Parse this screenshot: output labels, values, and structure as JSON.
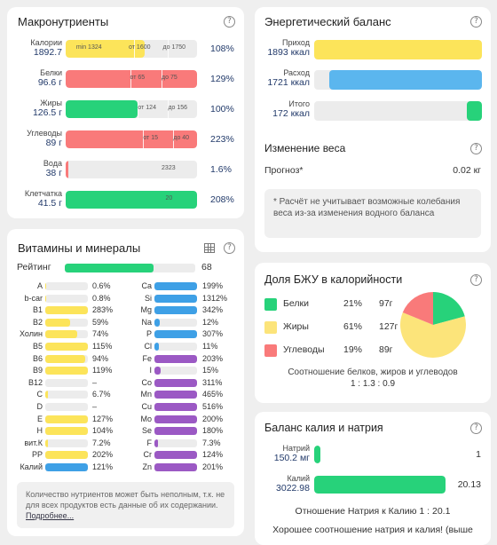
{
  "macro": {
    "title": "Макронутриенты",
    "rows": [
      {
        "name": "Калории",
        "value": "1892.7",
        "pct": "108%",
        "color": "#fce45a",
        "fill": 0.6,
        "marks": [
          0.52,
          0.78
        ],
        "ticks": [
          {
            "t": "min 1324",
            "x": 0.08
          },
          {
            "t": "от 1600",
            "x": 0.48
          },
          {
            "t": "до 1750",
            "x": 0.74
          }
        ]
      },
      {
        "name": "Белки",
        "value": "96.6 г",
        "pct": "129%",
        "color": "#f97a7a",
        "fill": 1,
        "marks": [
          0.49,
          0.73
        ],
        "ticks": [
          {
            "t": "от 65",
            "x": 0.49
          },
          {
            "t": "до 75",
            "x": 0.73
          }
        ]
      },
      {
        "name": "Жиры",
        "value": "126.5 г",
        "pct": "100%",
        "color": "#27d27a",
        "fill": 0.55,
        "marks": [
          0.55,
          0.78
        ],
        "ticks": [
          {
            "t": "от 124",
            "x": 0.55
          },
          {
            "t": "до 156",
            "x": 0.78
          }
        ]
      },
      {
        "name": "Углеводы",
        "value": "89 г",
        "pct": "223%",
        "color": "#f97a7a",
        "fill": 1,
        "marks": [
          0.59,
          0.82
        ],
        "ticks": [
          {
            "t": "от 15",
            "x": 0.59
          },
          {
            "t": "до 40",
            "x": 0.82
          }
        ]
      },
      {
        "name": "Вода",
        "value": "38 г",
        "pct": "1.6%",
        "color": "#f97a7a",
        "fill": 0.02,
        "marks": [],
        "ticks": [
          {
            "t": "2323",
            "x": 0.73
          }
        ]
      },
      {
        "name": "Клетчатка",
        "value": "41.5 г",
        "pct": "208%",
        "color": "#27d27a",
        "fill": 1,
        "marks": [],
        "ticks": [
          {
            "t": "20",
            "x": 0.76
          }
        ]
      }
    ]
  },
  "vit": {
    "title": "Витамины и минералы",
    "rating_label": "Рейтинг",
    "rating_value": "68",
    "rating_fill": 0.68,
    "left": [
      {
        "n": "A",
        "p": "0.6%",
        "f": 0.01,
        "c": "#fce45a"
      },
      {
        "n": "b-car",
        "p": "0.8%",
        "f": 0.01,
        "c": "#fce45a"
      },
      {
        "n": "B1",
        "p": "283%",
        "f": 1,
        "c": "#fce45a"
      },
      {
        "n": "B2",
        "p": "59%",
        "f": 0.59,
        "c": "#fce45a"
      },
      {
        "n": "Холин",
        "p": "74%",
        "f": 0.74,
        "c": "#fce45a"
      },
      {
        "n": "B5",
        "p": "115%",
        "f": 1,
        "c": "#fce45a"
      },
      {
        "n": "B6",
        "p": "94%",
        "f": 0.94,
        "c": "#fce45a"
      },
      {
        "n": "B9",
        "p": "119%",
        "f": 1,
        "c": "#fce45a"
      },
      {
        "n": "B12",
        "p": "–",
        "f": 0,
        "c": "#fce45a"
      },
      {
        "n": "C",
        "p": "6.7%",
        "f": 0.067,
        "c": "#fce45a"
      },
      {
        "n": "D",
        "p": "–",
        "f": 0,
        "c": "#fce45a"
      },
      {
        "n": "E",
        "p": "127%",
        "f": 1,
        "c": "#fce45a"
      },
      {
        "n": "H",
        "p": "104%",
        "f": 1,
        "c": "#fce45a"
      },
      {
        "n": "вит.К",
        "p": "7.2%",
        "f": 0.072,
        "c": "#fce45a"
      },
      {
        "n": "PP",
        "p": "202%",
        "f": 1,
        "c": "#fce45a"
      },
      {
        "n": "Калий",
        "p": "121%",
        "f": 1,
        "c": "#3ea0e6"
      }
    ],
    "right": [
      {
        "n": "Ca",
        "p": "199%",
        "f": 1,
        "c": "#3ea0e6"
      },
      {
        "n": "Si",
        "p": "1312%",
        "f": 1,
        "c": "#3ea0e6"
      },
      {
        "n": "Mg",
        "p": "342%",
        "f": 1,
        "c": "#3ea0e6"
      },
      {
        "n": "Na",
        "p": "12%",
        "f": 0.12,
        "c": "#3ea0e6"
      },
      {
        "n": "P",
        "p": "307%",
        "f": 1,
        "c": "#3ea0e6"
      },
      {
        "n": "Cl",
        "p": "11%",
        "f": 0.11,
        "c": "#3ea0e6"
      },
      {
        "n": "Fe",
        "p": "203%",
        "f": 1,
        "c": "#9b59c4"
      },
      {
        "n": "I",
        "p": "15%",
        "f": 0.15,
        "c": "#9b59c4"
      },
      {
        "n": "Co",
        "p": "311%",
        "f": 1,
        "c": "#9b59c4"
      },
      {
        "n": "Mn",
        "p": "465%",
        "f": 1,
        "c": "#9b59c4"
      },
      {
        "n": "Cu",
        "p": "516%",
        "f": 1,
        "c": "#9b59c4"
      },
      {
        "n": "Mo",
        "p": "200%",
        "f": 1,
        "c": "#9b59c4"
      },
      {
        "n": "Se",
        "p": "180%",
        "f": 1,
        "c": "#9b59c4"
      },
      {
        "n": "F",
        "p": "7.3%",
        "f": 0.073,
        "c": "#9b59c4"
      },
      {
        "n": "Cr",
        "p": "124%",
        "f": 1,
        "c": "#9b59c4"
      },
      {
        "n": "Zn",
        "p": "201%",
        "f": 1,
        "c": "#9b59c4"
      }
    ],
    "note": "Количество нутриентов может быть неполным, т.к. не для всех продуктов есть данные об их содержании.",
    "note_link": "Подробнее..."
  },
  "energy": {
    "title": "Энергетический баланс",
    "rows": [
      {
        "name": "Приход",
        "value": "1893 ккал",
        "color": "#fce45a",
        "fill": 1
      },
      {
        "name": "Расход",
        "value": "1721 ккал",
        "color": "#5bb6ee",
        "fill": 0.91
      },
      {
        "name": "Итого",
        "value": "172 ккал",
        "color": "#27d27a",
        "fill": 0.09
      }
    ],
    "weight_title": "Изменение веса",
    "forecast_label": "Прогноз*",
    "forecast_value": "0.02 кг",
    "note": "* Расчёт не учитывает возможные колебания веса из-за изменения водного баланса"
  },
  "bju": {
    "title": "Доля БЖУ в калорийности",
    "items": [
      {
        "name": "Белки",
        "pct": "21%",
        "grams": "97г",
        "color": "#27d27a",
        "share": 21
      },
      {
        "name": "Жиры",
        "pct": "61%",
        "grams": "127г",
        "color": "#fce47a",
        "share": 61
      },
      {
        "name": "Углеводы",
        "pct": "19%",
        "grams": "89г",
        "color": "#f97a7a",
        "share": 19
      }
    ],
    "ratio_label": "Соотношение белков, жиров и углеводов",
    "ratio": "1 : 1.3 : 0.9"
  },
  "kna": {
    "title": "Баланс калия и натрия",
    "rows": [
      {
        "name": "Натрий",
        "value": "150.2 мг",
        "num": "1",
        "fill": 0.05
      },
      {
        "name": "Калий",
        "value": "3022.98",
        "num": "20.13",
        "fill": 1
      }
    ],
    "ratio_text": "Отношение Натрия к Калию  1 : 20.1",
    "good_text": "Хорошее соотношение натрия и калия! (выше"
  },
  "help": "?"
}
